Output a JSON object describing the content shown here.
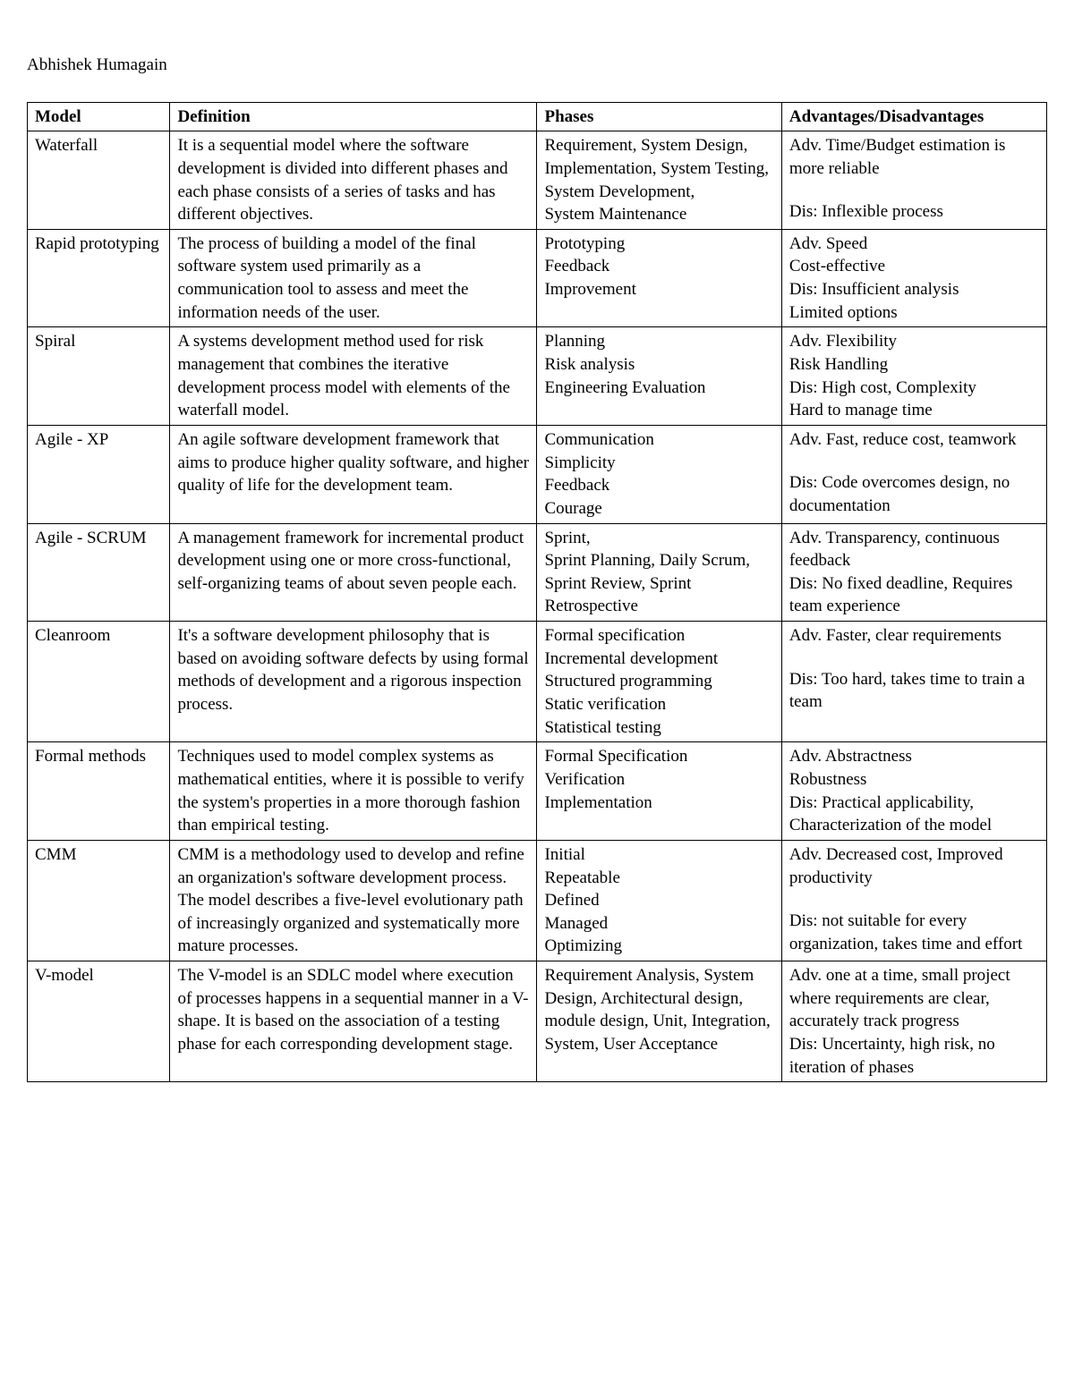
{
  "author": "Abhishek Humagain",
  "table": {
    "columns": [
      "Model",
      "Definition",
      "Phases",
      "Advantages/Disadvantages"
    ],
    "col_widths_pct": [
      14,
      36,
      24,
      26
    ],
    "border_color": "#000000",
    "background_color": "#ffffff",
    "text_color": "#000000",
    "header_font_weight": 700,
    "body_fontsize_pt": 14,
    "header_fontsize_pt": 14,
    "rows": [
      {
        "model": "Waterfall",
        "definition": "It is a sequential model where the software development is divided into different phases and each phase consists of a series of tasks and has different objectives.",
        "phases": [
          "Requirement, System Design, Implementation, System Testing, System Development,",
          "System Maintenance"
        ],
        "adv_dis": [
          "Adv. Time/Budget estimation is more reliable",
          "",
          "Dis: Inflexible process"
        ]
      },
      {
        "model": "Rapid prototyping",
        "definition": "The process of building a model of the final software system used primarily as a communication tool to assess and meet the information needs of the user.",
        "phases": [
          "Prototyping",
          "Feedback",
          "Improvement"
        ],
        "adv_dis": [
          "Adv. Speed",
          "Cost-effective",
          "Dis: Insufficient analysis",
          "Limited options"
        ]
      },
      {
        "model": "Spiral",
        "definition": "A systems development method used for risk management that combines the iterative development process model with elements of the waterfall model.",
        "phases": [
          "Planning",
          "Risk analysis",
          "Engineering Evaluation"
        ],
        "adv_dis": [
          "Adv. Flexibility",
          "Risk Handling",
          "Dis: High cost, Complexity",
          "Hard to manage time"
        ]
      },
      {
        "model": "Agile - XP",
        "definition": "An agile software development framework that aims to produce higher quality software, and higher quality of life for the development team.",
        "phases": [
          "Communication",
          "Simplicity",
          "Feedback",
          "Courage"
        ],
        "adv_dis": [
          "Adv. Fast, reduce cost, teamwork",
          "",
          "Dis: Code overcomes design, no documentation"
        ]
      },
      {
        "model": "Agile - SCRUM",
        "definition": "A management framework for incremental product development using one or more cross-functional, self-organizing teams of about seven people each.",
        "phases": [
          "Sprint,",
          "Sprint Planning, Daily Scrum, Sprint Review, Sprint Retrospective"
        ],
        "adv_dis": [
          "Adv. Transparency, continuous feedback",
          "Dis: No fixed deadline, Requires team experience"
        ]
      },
      {
        "model": "Cleanroom",
        "definition": "It's a software development philosophy that is based on avoiding software defects by using formal methods of development and a rigorous inspection process.",
        "phases": [
          "Formal specification",
          "Incremental development",
          "Structured programming",
          "Static verification",
          "Statistical testing"
        ],
        "adv_dis": [
          "Adv. Faster, clear requirements",
          "",
          "Dis: Too hard, takes time to train a team"
        ]
      },
      {
        "model": "Formal methods",
        "definition": "Techniques used to model complex systems as mathematical entities, where it is possible to verify the system's properties in a more thorough fashion than empirical testing.",
        "phases": [
          "Formal Specification",
          "Verification",
          "Implementation"
        ],
        "adv_dis": [
          "Adv. Abstractness",
          "Robustness",
          "Dis: Practical applicability, Characterization of the model"
        ]
      },
      {
        "model": "CMM",
        "definition": "CMM is a methodology used to develop and refine an organization's software development process. The model describes a five-level evolutionary path of increasingly organized and systematically more mature processes.",
        "phases": [
          "Initial",
          "Repeatable",
          "Defined",
          "Managed",
          "Optimizing"
        ],
        "adv_dis": [
          "Adv. Decreased cost, Improved productivity",
          "",
          "Dis: not suitable for every organization, takes time and effort"
        ]
      },
      {
        "model": "V-model",
        "definition": "The V-model is an SDLC model where execution of processes happens in a sequential manner in a V-shape.  It is based on the association of a testing phase for each corresponding development stage.",
        "phases": [
          "Requirement Analysis, System Design, Architectural design, module design, Unit, Integration, System, User Acceptance"
        ],
        "adv_dis": [
          "Adv. one at a time, small project where requirements are clear,",
          "accurately track progress",
          "Dis:  Uncertainty, high risk, no iteration of phases"
        ]
      }
    ]
  }
}
